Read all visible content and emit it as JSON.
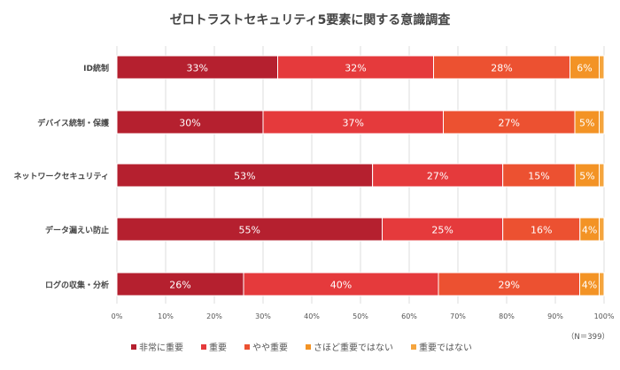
{
  "chart_data": {
    "type": "bar",
    "orientation": "horizontal-stacked-100",
    "title": "ゼロトラストセキュリティ5要素に関する意識調査",
    "note": "（N＝399）",
    "categories": [
      "ID統制",
      "デバイス統制・保護",
      "ネットワークセキュリティ",
      "データ漏えい防止",
      "ログの収集・分析"
    ],
    "series": [
      {
        "name": "非常に重要",
        "color": "#b5202f",
        "values": [
          33,
          30,
          53,
          55,
          26
        ]
      },
      {
        "name": "重要",
        "color": "#e53a3c",
        "values": [
          32,
          37,
          27,
          25,
          40
        ]
      },
      {
        "name": "やや重要",
        "color": "#ec5131",
        "values": [
          28,
          27,
          15,
          16,
          29
        ]
      },
      {
        "name": "さほど重要ではない",
        "color": "#f39325",
        "values": [
          6,
          5,
          5,
          4,
          4
        ]
      },
      {
        "name": "重要ではない",
        "color": "#f5a53e",
        "values": [
          1,
          1,
          1,
          1,
          1
        ]
      }
    ],
    "labeled_series": 4,
    "xlim": [
      0,
      100
    ],
    "xticks": [
      "0%",
      "10%",
      "20%",
      "30%",
      "40%",
      "50%",
      "60%",
      "70%",
      "80%",
      "90%",
      "100%"
    ],
    "grid": true,
    "legend": "bottom"
  }
}
